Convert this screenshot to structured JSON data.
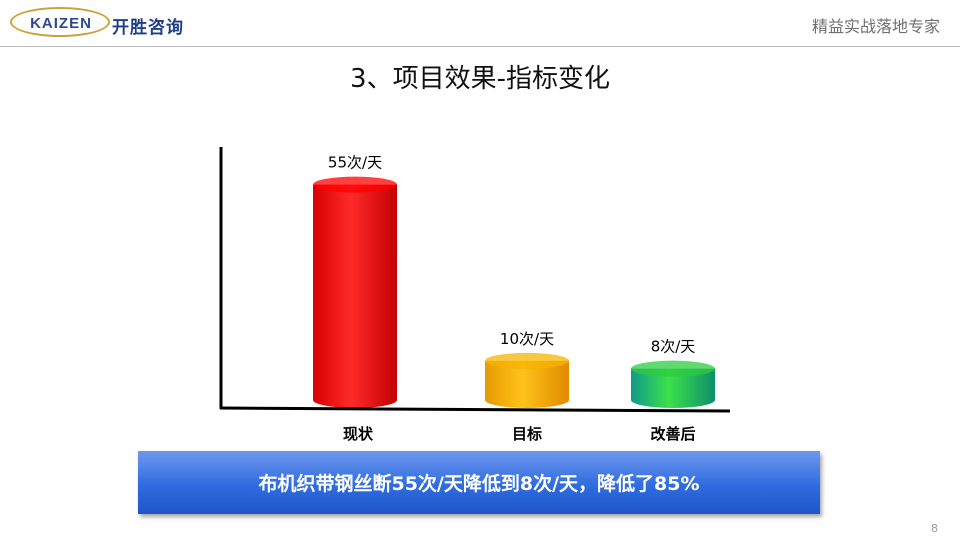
{
  "header": {
    "logo_en": "KAIZEN",
    "logo_cn": "开胜咨询",
    "tagline": "精益实战落地专家"
  },
  "title": "3、项目效果-指标变化",
  "chart_data": {
    "type": "bar",
    "categories": [
      "现状",
      "目标",
      "改善后"
    ],
    "values": [
      55,
      10,
      8
    ],
    "data_labels": [
      "55次/天",
      "10次/天",
      "8次/天"
    ],
    "colors": [
      "#ff0000",
      "#f5b400",
      "#2ecc40"
    ],
    "ylim": [
      0,
      60
    ],
    "title": "",
    "xlabel": "",
    "ylabel": ""
  },
  "banner": {
    "text": "布机织带钢丝断55次/天降低到8次/天，降低了85%"
  },
  "page_number": "8"
}
